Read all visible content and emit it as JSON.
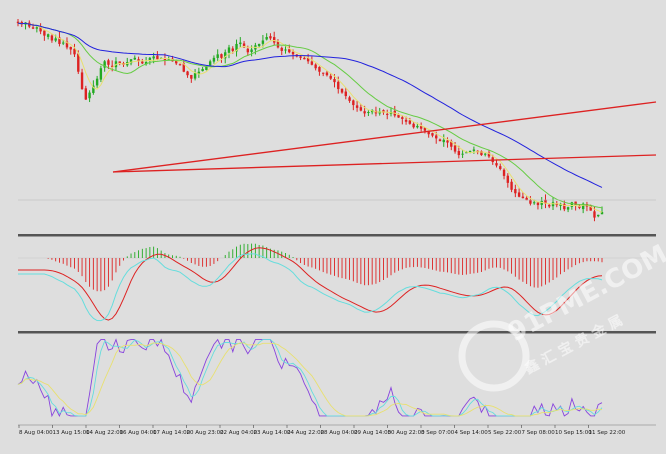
{
  "chart_data": {
    "type": "candlestick",
    "grid": false,
    "x_tick_labels": [
      "8 Aug 04:00",
      "13 Aug 15:00",
      "14 Aug 22:00",
      "16 Aug 04:00",
      "17 Aug 14:00",
      "20 Aug 23:00",
      "22 Aug 04:00",
      "23 Aug 14:00",
      "24 Aug 22:00",
      "28 Aug 04:00",
      "29 Aug 14:00",
      "30 Aug 22:00",
      "3 Sep 07:00",
      "4 Sep 14:00",
      "5 Sep 22:00",
      "7 Sep 08:00",
      "10 Sep 15:00",
      "11 Sep 22:00"
    ],
    "candles_close": [
      0.0,
      0.02,
      -0.01,
      0.05,
      0.08,
      0.06,
      0.12,
      0.18,
      0.16,
      0.25,
      0.22,
      0.3,
      0.28,
      0.35,
      0.38,
      0.45,
      0.7,
      0.95,
      1.1,
      1.0,
      0.9,
      0.8,
      0.65,
      0.55,
      0.6,
      0.62,
      0.55,
      0.58,
      0.6,
      0.56,
      0.52,
      0.5,
      0.55,
      0.58,
      0.56,
      0.5,
      0.48,
      0.52,
      0.5,
      0.54,
      0.52,
      0.55,
      0.58,
      0.6,
      0.7,
      0.75,
      0.8,
      0.72,
      0.7,
      0.66,
      0.62,
      0.55,
      0.5,
      0.45,
      0.5,
      0.42,
      0.35,
      0.4,
      0.3,
      0.28,
      0.35,
      0.42,
      0.38,
      0.32,
      0.3,
      0.25,
      0.2,
      0.22,
      0.28,
      0.35,
      0.4,
      0.38,
      0.42,
      0.45,
      0.48,
      0.5,
      0.52,
      0.55,
      0.6,
      0.65,
      0.7,
      0.72,
      0.75,
      0.8,
      0.85,
      0.95,
      1.0,
      1.05,
      1.12,
      1.18,
      1.22,
      1.26,
      1.3,
      1.28,
      1.25,
      1.3,
      1.27,
      1.29,
      1.31,
      1.28,
      1.33,
      1.36,
      1.38,
      1.42,
      1.45,
      1.5,
      1.48,
      1.52,
      1.55,
      1.6,
      1.62,
      1.66,
      1.7,
      1.68,
      1.72,
      1.78,
      1.85,
      1.9,
      1.88,
      1.86,
      1.84,
      1.82,
      1.86,
      1.9,
      1.88,
      1.92,
      2.0,
      2.05,
      2.1,
      2.2,
      2.3,
      2.4,
      2.45,
      2.5,
      2.52,
      2.55,
      2.6,
      2.58,
      2.62,
      2.56,
      2.6,
      2.64,
      2.58,
      2.62,
      2.6,
      2.68,
      2.65,
      2.58,
      2.62,
      2.66,
      2.6,
      2.64,
      2.7,
      2.8,
      2.76,
      2.72
    ],
    "series": [
      {
        "name": "",
        "kind": "ma-fast",
        "color": "#e8e070"
      },
      {
        "name": "",
        "kind": "ma-mid",
        "color": "#66cc44"
      },
      {
        "name": "",
        "kind": "ma-slow",
        "color": "#2222dd"
      },
      {
        "name": "",
        "kind": "trendline",
        "color": "#dd2222"
      },
      {
        "name": "",
        "kind": "trendline",
        "color": "#dd2222"
      }
    ],
    "panels": [
      "price",
      "macd",
      "stochastic"
    ]
  },
  "colors": {
    "background": "#dedede",
    "bull": "#22aa22",
    "bear": "#dd2222",
    "macd_signal": "#dd2222",
    "macd_line": "#66dddd",
    "stoch_main": "#8844dd",
    "stoch_signal": "#66dddd",
    "stoch_slow": "#e8e070",
    "separator": "#555555"
  },
  "watermark": {
    "text": "91PME.COM",
    "subtext": "鑫 汇 宝 贵 金 属"
  }
}
